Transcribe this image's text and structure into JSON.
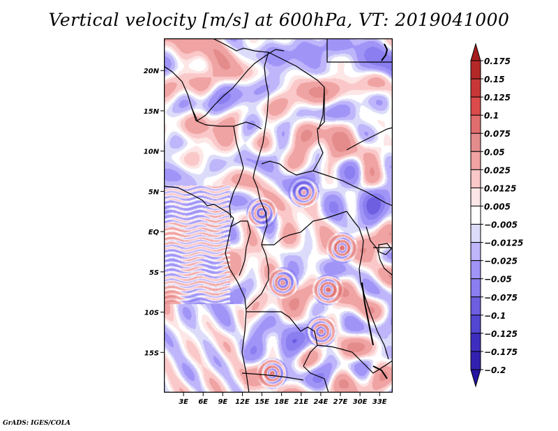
{
  "title": "Vertical velocity [m/s] at 600hPa, VT: 2019041000",
  "footer": "GrADS: IGES/COLA",
  "map": {
    "variable": "Vertical velocity",
    "units": "m/s",
    "level": "600hPa",
    "valid_time": "2019041000",
    "lon_range": [
      0,
      35
    ],
    "lat_range": [
      -20,
      24
    ],
    "x_ticks": [
      {
        "value": 3,
        "label": "3E"
      },
      {
        "value": 6,
        "label": "6E"
      },
      {
        "value": 9,
        "label": "9E"
      },
      {
        "value": 12,
        "label": "12E"
      },
      {
        "value": 15,
        "label": "15E"
      },
      {
        "value": 18,
        "label": "18E"
      },
      {
        "value": 21,
        "label": "21E"
      },
      {
        "value": 24,
        "label": "24E"
      },
      {
        "value": 27,
        "label": "27E"
      },
      {
        "value": 30,
        "label": "30E"
      },
      {
        "value": 33,
        "label": "33E"
      }
    ],
    "y_ticks": [
      {
        "value": 20,
        "label": "20N"
      },
      {
        "value": 15,
        "label": "15N"
      },
      {
        "value": 10,
        "label": "10N"
      },
      {
        "value": 5,
        "label": "5N"
      },
      {
        "value": 0,
        "label": "EQ"
      },
      {
        "value": -5,
        "label": "5S"
      },
      {
        "value": -10,
        "label": "10S"
      },
      {
        "value": -15,
        "label": "15S"
      }
    ]
  },
  "colorbar": {
    "levels": [
      0.175,
      0.15,
      0.125,
      0.1,
      0.075,
      0.05,
      0.025,
      0.0125,
      0.005,
      -0.005,
      -0.0125,
      -0.025,
      -0.05,
      -0.075,
      -0.1,
      -0.125,
      -0.175,
      -0.2
    ],
    "labels": [
      "0.175",
      "0.15",
      "0.125",
      "0.1",
      "0.075",
      "0.05",
      "0.025",
      "0.0125",
      "0.005",
      "−0.005",
      "−0.0125",
      "−0.025",
      "−0.05",
      "−0.075",
      "−0.1",
      "−0.125",
      "−0.175",
      "−0.2"
    ],
    "colors": [
      "#a51c1c",
      "#b42828",
      "#c83737",
      "#dc4b4b",
      "#e16e6e",
      "#e48c8c",
      "#f0a3a3",
      "#fac8c8",
      "#fde6e6",
      "#ffffff",
      "#dcdcfa",
      "#bfb5fa",
      "#a094f7",
      "#8a7ef0",
      "#6e5ee0",
      "#5346d2",
      "#3e2ec0",
      "#3220b0",
      "#2414a0"
    ]
  }
}
